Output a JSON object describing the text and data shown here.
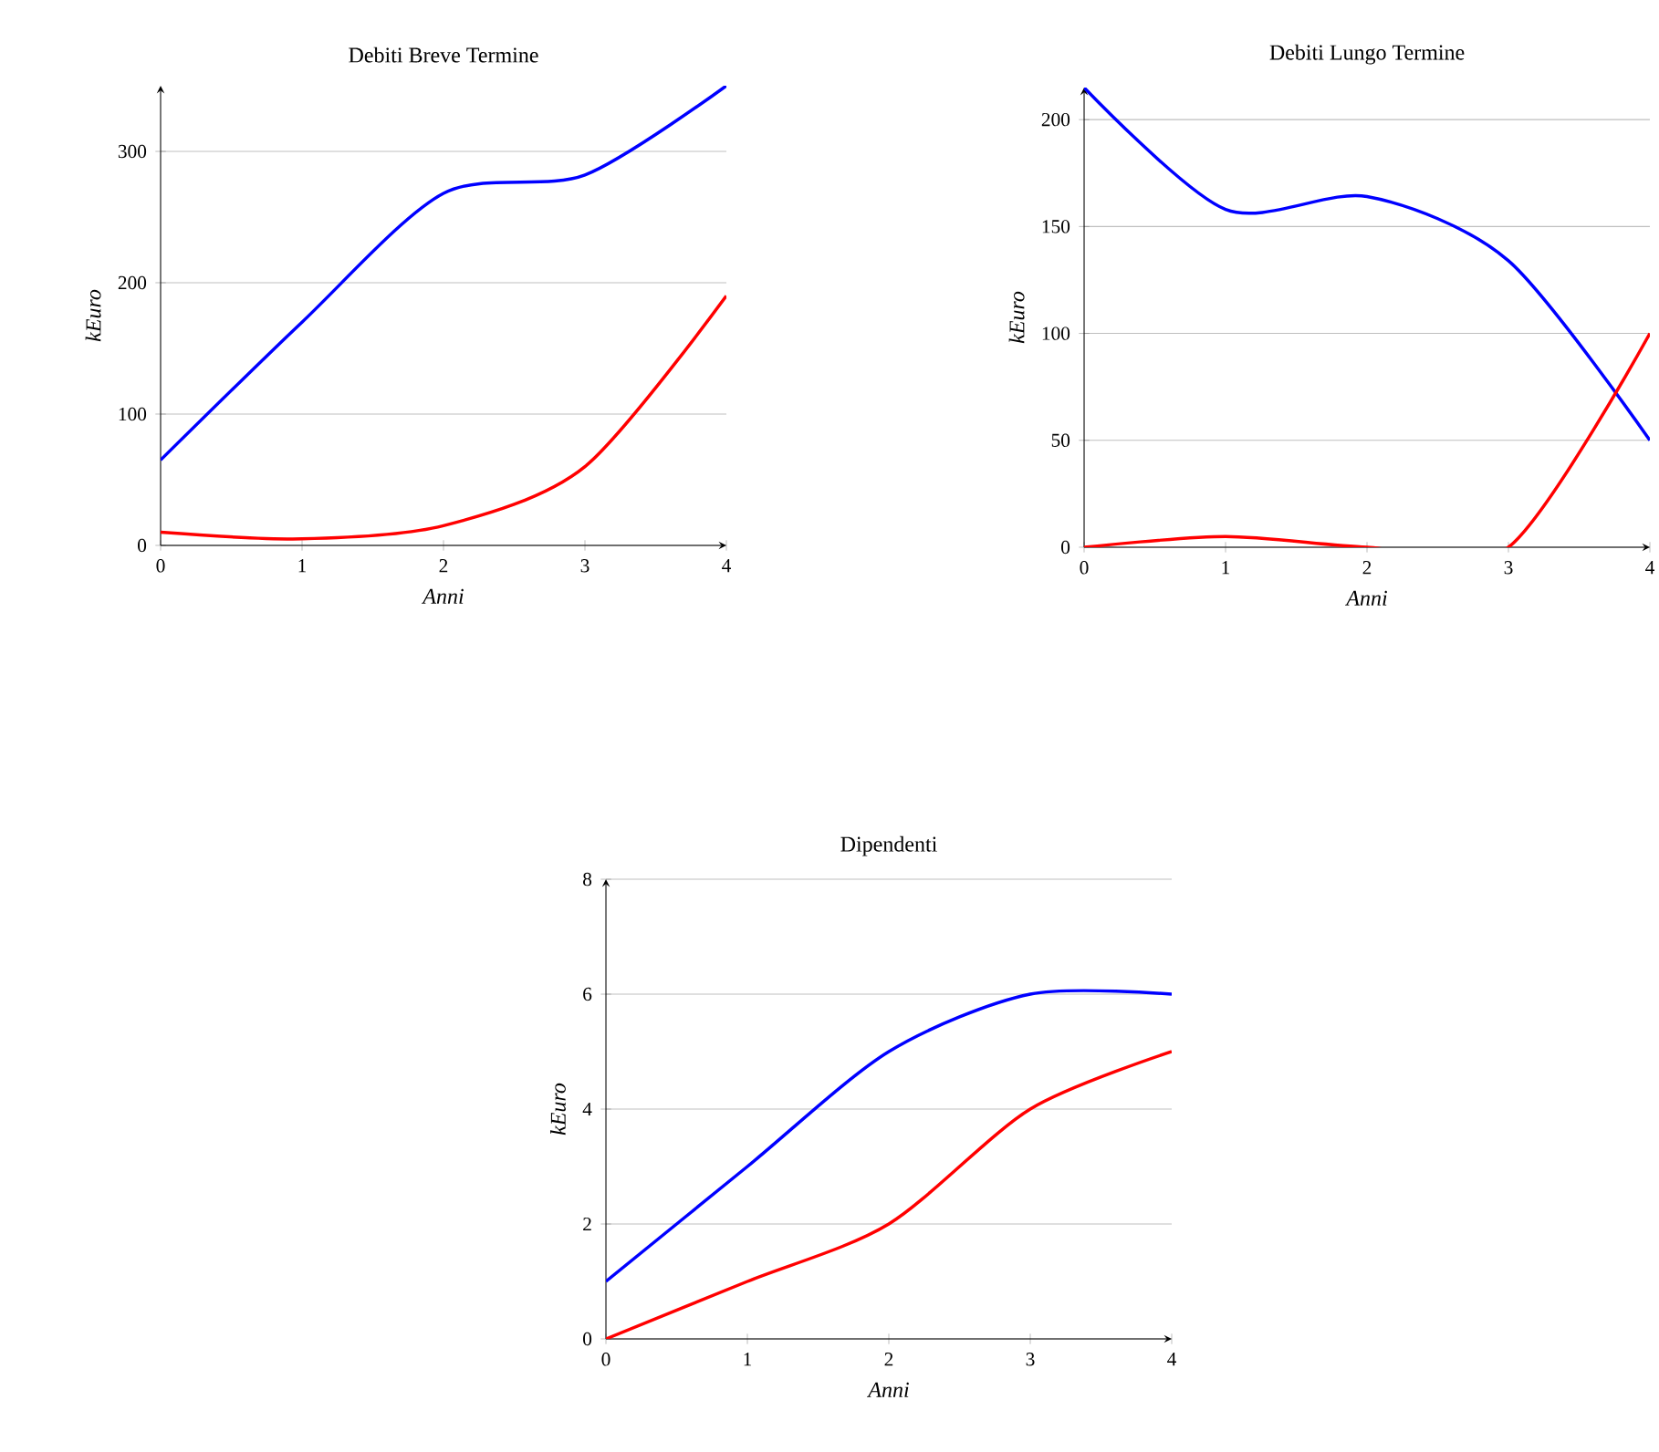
{
  "chart_data": [
    {
      "type": "line",
      "title": "Debiti Breve Termine",
      "xlabel": "Anni",
      "ylabel": "kEuro",
      "x": [
        0,
        1,
        2,
        3,
        4
      ],
      "xlim": [
        0,
        4
      ],
      "xticks": [
        0,
        1,
        2,
        3,
        4
      ],
      "ylim": [
        0,
        350
      ],
      "yticks": [
        0,
        100,
        200,
        300
      ],
      "grid": "y",
      "series": [
        {
          "color": "#0000ff",
          "values": [
            65,
            170,
            268,
            282,
            350
          ]
        },
        {
          "color": "#ff0000",
          "values": [
            10,
            5,
            15,
            60,
            190
          ]
        }
      ]
    },
    {
      "type": "line",
      "title": "Debiti Lungo Termine",
      "xlabel": "Anni",
      "ylabel": "kEuro",
      "x": [
        0,
        1,
        2,
        3,
        4
      ],
      "xlim": [
        0,
        4
      ],
      "xticks": [
        0,
        1,
        2,
        3,
        4
      ],
      "ylim": [
        0,
        215
      ],
      "yticks": [
        0,
        50,
        100,
        150,
        200
      ],
      "grid": "y",
      "series": [
        {
          "color": "#0000ff",
          "values": [
            215,
            158,
            164,
            134,
            50
          ]
        },
        {
          "color": "#ff0000",
          "values": [
            0,
            5,
            0,
            0,
            100
          ]
        }
      ]
    },
    {
      "type": "line",
      "title": "Dipendenti",
      "xlabel": "Anni",
      "ylabel": "kEuro",
      "x": [
        0,
        1,
        2,
        3,
        4
      ],
      "xlim": [
        0,
        4
      ],
      "xticks": [
        0,
        1,
        2,
        3,
        4
      ],
      "ylim": [
        0,
        8
      ],
      "yticks": [
        0,
        2,
        4,
        6,
        8
      ],
      "grid": "y",
      "series": [
        {
          "color": "#0000ff",
          "values": [
            1,
            3,
            5,
            6,
            6
          ]
        },
        {
          "color": "#ff0000",
          "values": [
            0,
            1,
            2,
            4,
            5
          ]
        }
      ]
    }
  ]
}
